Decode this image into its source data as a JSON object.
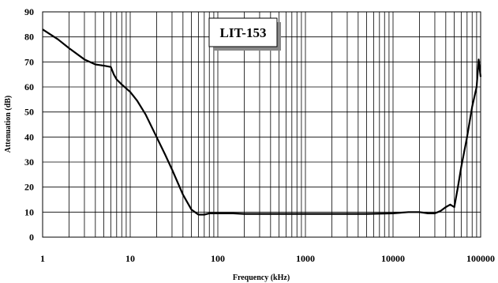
{
  "chart_data": {
    "type": "line",
    "title": "",
    "xlabel": "Frequency (kHz)",
    "ylabel": "Attenuation (dB)",
    "x_scale": "log",
    "xlim": [
      1,
      100000
    ],
    "ylim": [
      0,
      90
    ],
    "x_ticks": [
      1,
      10,
      100,
      1000,
      10000,
      100000
    ],
    "x_tick_labels": [
      "1",
      "10",
      "100",
      "1000",
      "10000",
      "100000"
    ],
    "y_ticks": [
      0,
      10,
      20,
      30,
      40,
      50,
      60,
      70,
      80,
      90
    ],
    "y_tick_labels": [
      "0",
      "10",
      "20",
      "30",
      "40",
      "50",
      "60",
      "70",
      "80",
      "90"
    ],
    "grid": true,
    "legend": "none",
    "annotation": "LIT-153",
    "line_color": "#000000",
    "series": [
      {
        "x": [
          1,
          1.5,
          2,
          3,
          4,
          5,
          6,
          6.5,
          7,
          8,
          10,
          12,
          15,
          20,
          25,
          30,
          40,
          50,
          60,
          70,
          80,
          90,
          100,
          150,
          200,
          500,
          1000,
          5000,
          10000,
          15000,
          20000,
          25000,
          30000,
          35000,
          40000,
          45000,
          50000,
          55000,
          60000,
          70000,
          80000,
          90000,
          95000,
          100000
        ],
        "y": [
          83,
          79,
          75.5,
          71,
          69,
          68.5,
          68,
          65,
          63,
          61,
          58,
          54.5,
          49,
          40,
          33,
          27,
          17,
          11,
          9,
          9,
          9.5,
          9.5,
          9.5,
          9.5,
          9.3,
          9.3,
          9.3,
          9.3,
          9.5,
          10,
          10,
          9.5,
          9.5,
          10.5,
          12,
          13,
          12,
          20,
          28,
          40,
          52,
          60,
          71,
          64
        ]
      }
    ]
  }
}
